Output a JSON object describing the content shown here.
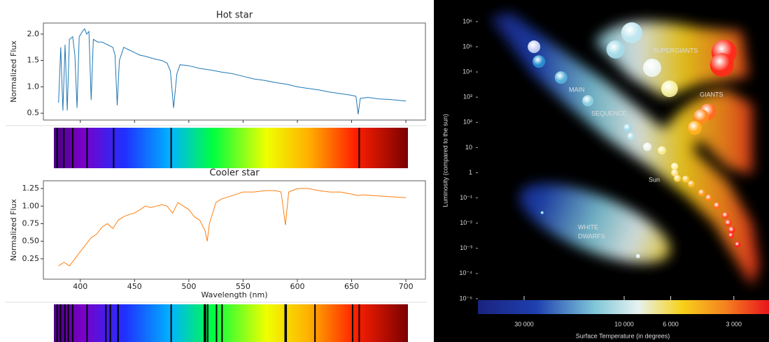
{
  "chart_data": [
    {
      "type": "line",
      "title": "Hot star",
      "ylabel": "Normalized Flux",
      "color": "#1f77b4",
      "show_xtick_labels": false,
      "x": [
        380,
        382,
        384,
        386,
        388,
        390,
        393,
        395,
        397,
        399,
        402,
        404,
        406,
        408,
        410,
        412,
        416,
        420,
        425,
        430,
        432,
        434,
        436,
        440,
        445,
        450,
        455,
        460,
        465,
        470,
        475,
        480,
        483,
        486,
        489,
        492,
        500,
        510,
        520,
        530,
        540,
        550,
        560,
        570,
        580,
        590,
        600,
        610,
        620,
        630,
        640,
        650,
        654,
        656,
        658,
        665,
        675,
        685,
        695,
        700
      ],
      "values": [
        0.7,
        1.75,
        0.55,
        1.8,
        0.55,
        1.9,
        1.95,
        1.6,
        0.6,
        1.95,
        2.05,
        2.1,
        2.0,
        2.05,
        0.75,
        1.9,
        1.85,
        1.85,
        1.8,
        1.75,
        1.6,
        0.65,
        1.5,
        1.75,
        1.7,
        1.65,
        1.6,
        1.58,
        1.55,
        1.52,
        1.5,
        1.45,
        1.3,
        0.6,
        1.25,
        1.42,
        1.4,
        1.35,
        1.32,
        1.28,
        1.25,
        1.2,
        1.15,
        1.12,
        1.08,
        1.05,
        1.0,
        0.97,
        0.94,
        0.9,
        0.87,
        0.84,
        0.82,
        0.48,
        0.78,
        0.8,
        0.77,
        0.76,
        0.74,
        0.73
      ],
      "xlim": [
        366,
        718
      ],
      "xticks": [
        400,
        450,
        500,
        550,
        600,
        650,
        700
      ],
      "ylim": [
        0.37,
        2.21
      ],
      "yticks": [
        0.5,
        {
          "value": 1.0,
          "label": "1.0"
        },
        1.5,
        {
          "value": 2.0,
          "label": "2.0"
        }
      ]
    },
    {
      "type": "spectrum",
      "xlim": [
        380,
        700
      ],
      "lines": [
        383,
        389,
        397,
        410,
        434,
        486,
        656
      ],
      "line_color": "#000000"
    },
    {
      "type": "line",
      "title": "Cooler star",
      "ylabel": "Normalized Flux",
      "xlabel": "Wavelength (nm)",
      "color": "#ff7f0e",
      "show_xtick_labels": true,
      "x": [
        380,
        385,
        390,
        395,
        400,
        405,
        410,
        415,
        420,
        425,
        430,
        435,
        440,
        445,
        450,
        455,
        460,
        465,
        470,
        475,
        480,
        485,
        490,
        495,
        500,
        505,
        510,
        515,
        517,
        519,
        525,
        530,
        540,
        550,
        560,
        570,
        580,
        585,
        589,
        592,
        600,
        610,
        620,
        630,
        640,
        650,
        656,
        660,
        670,
        680,
        690,
        700
      ],
      "values": [
        0.15,
        0.2,
        0.15,
        0.25,
        0.35,
        0.45,
        0.55,
        0.6,
        0.7,
        0.75,
        0.68,
        0.8,
        0.85,
        0.88,
        0.9,
        0.95,
        1.0,
        0.98,
        1.0,
        1.02,
        1.0,
        0.9,
        1.05,
        1.0,
        0.95,
        0.85,
        0.8,
        0.65,
        0.5,
        0.75,
        1.05,
        1.1,
        1.15,
        1.2,
        1.2,
        1.22,
        1.22,
        1.2,
        0.73,
        1.2,
        1.25,
        1.25,
        1.22,
        1.2,
        1.2,
        1.17,
        1.15,
        1.16,
        1.15,
        1.14,
        1.13,
        1.12
      ],
      "xlim": [
        366,
        718
      ],
      "xticks": [
        400,
        450,
        500,
        550,
        600,
        650,
        700
      ],
      "ylim": [
        -0.04,
        1.36
      ],
      "yticks": [
        0.25,
        {
          "value": 0.5,
          "label": "0.50"
        },
        0.75,
        {
          "value": 1.0,
          "label": "1.00"
        },
        1.25
      ]
    },
    {
      "type": "spectrum",
      "xlim": [
        380,
        700
      ],
      "lines": [
        383,
        386,
        390,
        393,
        397,
        410,
        427,
        431,
        438,
        486,
        516,
        517,
        519,
        527,
        532,
        589,
        590,
        616,
        650,
        656
      ],
      "line_color": "#000000"
    },
    {
      "type": "scatter",
      "xlabel": "Surface Temperature (in degrees)",
      "ylabel": "Luminosity (compared to the sun)",
      "xscale": "log",
      "yscale": "log",
      "annotations": [
        "SUPERGIANTS",
        "GIANTS",
        "MAIN",
        "SEQUENCE",
        "Sun",
        "WHITE",
        "DWARFS"
      ],
      "x": [
        26900,
        25500,
        20000,
        14900,
        9200,
        11000,
        7360,
        6080,
        3340,
        3420,
        3980,
        4300,
        4610,
        9640,
        9300,
        7760,
        6610,
        5750,
        5750,
        5580,
        5090,
        4790,
        4270,
        3950,
        3610,
        3290,
        3190,
        3070,
        3090,
        2880,
        24600,
        8590
      ],
      "values": [
        100000,
        26000,
        6000,
        720,
        360000,
        78000,
        14700,
        2150,
        60000,
        19000,
        260,
        165,
        60,
        60,
        28,
        10.7,
        7.7,
        1.8,
        1,
        0.6,
        0.56,
        0.36,
        0.16,
        0.1,
        0.049,
        0.02,
        0.01,
        0.0053,
        0.0032,
        0.0014,
        0.026,
        0.00049
      ],
      "sizes": [
        9,
        9,
        9,
        8,
        15,
        13,
        13,
        12,
        18,
        17,
        12,
        11,
        10,
        6,
        5,
        6,
        6,
        5,
        5,
        5,
        5,
        5,
        5,
        5,
        5,
        5,
        5,
        5,
        4,
        4,
        2,
        3
      ],
      "colors": [
        "#c9d3f5",
        "#2a8fd0",
        "#5ab3db",
        "#8fd0e0",
        "#bfe6ef",
        "#a6dbe8",
        "#eef6f2",
        "#f5f0a0",
        "#ff2a1a",
        "#ff2a1a",
        "#ff6a20",
        "#ff8a20",
        "#ffb020",
        "#a0d8e8",
        "#b8e4ee",
        "#f0f4ee",
        "#f8ec90",
        "#fff0a0",
        "#ffe080",
        "#ffd860",
        "#ffc840",
        "#ffb830",
        "#ff9820",
        "#ff8018",
        "#ff6818",
        "#ff4818",
        "#ff3a18",
        "#ff2a18",
        "#ff2418",
        "#ff1a18",
        "#80e0ff",
        "#e0f0f0"
      ],
      "xlim": [
        49800,
        2040
      ],
      "xticks": [
        {
          "value": 30000,
          "label": "30 000"
        },
        {
          "value": 10000,
          "label": "10 000"
        },
        {
          "value": 6000,
          "label": "6 000"
        },
        {
          "value": 3000,
          "label": "3 000"
        }
      ],
      "ylim": [
        2.45e-06,
        3800000.0
      ],
      "yticks": [
        {
          "value": 1000000,
          "label": "10⁶"
        },
        {
          "value": 100000,
          "label": "10⁵"
        },
        {
          "value": 10000,
          "label": "10⁴"
        },
        {
          "value": 1000,
          "label": "10³"
        },
        {
          "value": 100,
          "label": "10²"
        },
        10,
        1,
        {
          "value": 0.1,
          "label": "10⁻¹"
        },
        {
          "value": 0.01,
          "label": "10⁻²"
        },
        {
          "value": 0.001,
          "label": "10⁻³"
        },
        {
          "value": 0.0001,
          "label": "10⁻⁴"
        },
        {
          "value": 1e-05,
          "label": "10⁻⁵"
        }
      ]
    }
  ]
}
